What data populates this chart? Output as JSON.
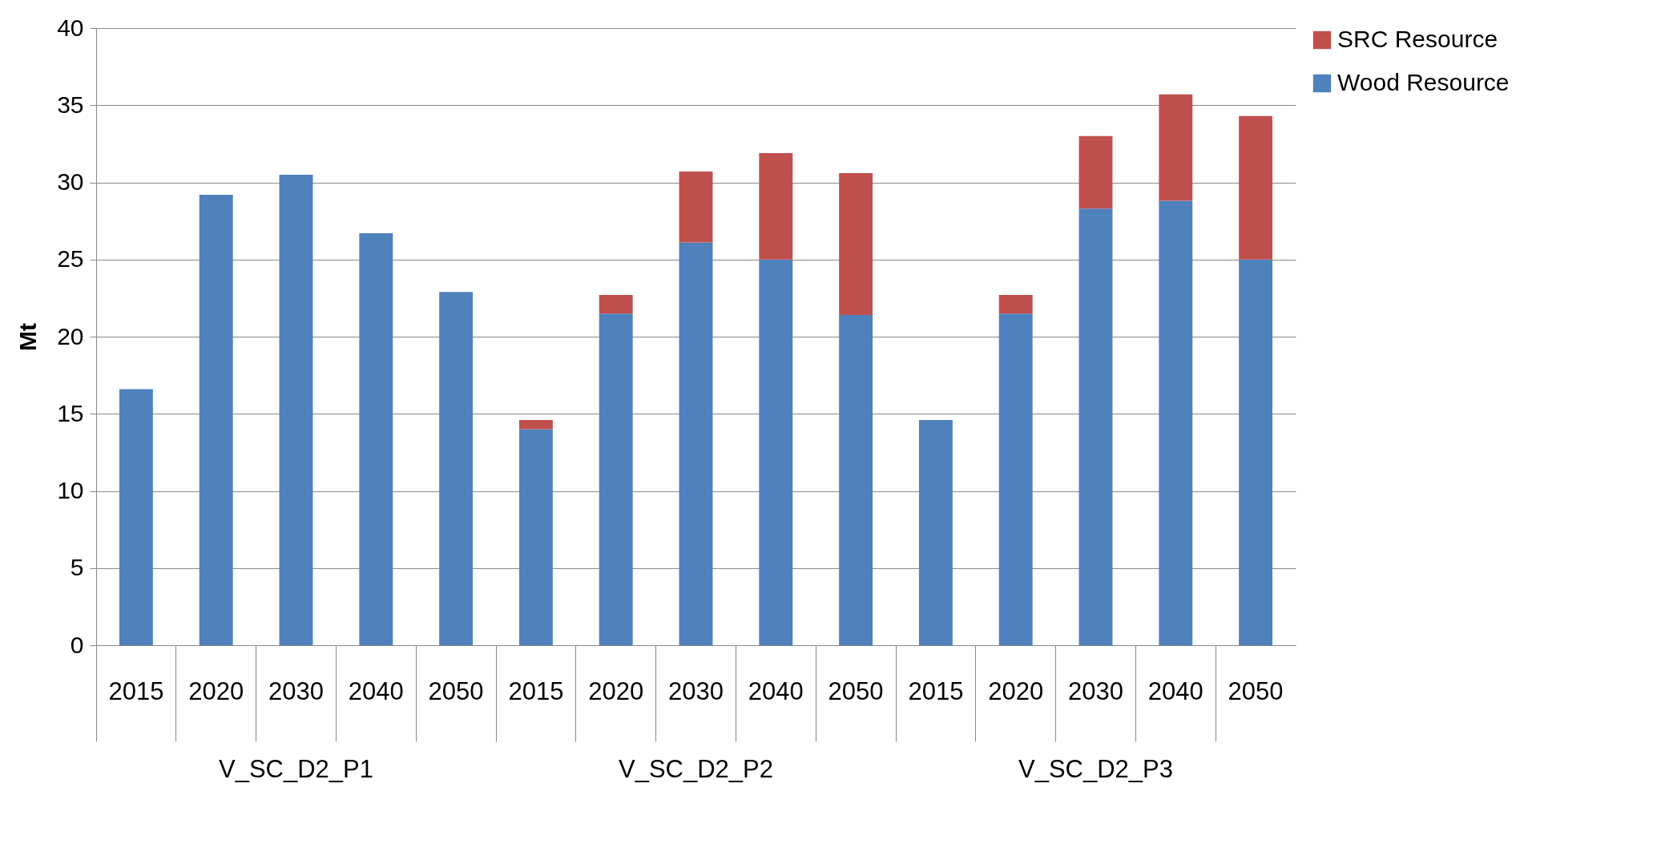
{
  "chart_data": {
    "type": "bar",
    "stacked": true,
    "categories": [
      "2015",
      "2020",
      "2030",
      "2040",
      "2050",
      "2015",
      "2020",
      "2030",
      "2040",
      "2050",
      "2015",
      "2020",
      "2030",
      "2040",
      "2050"
    ],
    "series": [
      {
        "name": "Wood Resource",
        "color": "#4f81bd",
        "values": [
          16.6,
          29.2,
          30.5,
          26.7,
          22.9,
          14.0,
          21.5,
          26.1,
          25.0,
          21.4,
          14.6,
          21.5,
          28.3,
          28.8,
          25.0
        ]
      },
      {
        "name": "SRC Resource",
        "color": "#c0504d",
        "values": [
          null,
          null,
          null,
          null,
          null,
          0.6,
          1.2,
          4.6,
          6.9,
          9.2,
          null,
          1.2,
          4.7,
          6.9,
          9.3
        ]
      }
    ],
    "ylabel": "Mt",
    "ylim": [
      0,
      40
    ],
    "yticks": [
      0,
      5,
      10,
      15,
      20,
      25,
      30,
      35,
      40
    ],
    "grid": "y",
    "legend": "right",
    "annotations": [
      "V_SC_D2_P1",
      "V_SC_D2_P2",
      "V_SC_D2_P3"
    ]
  }
}
